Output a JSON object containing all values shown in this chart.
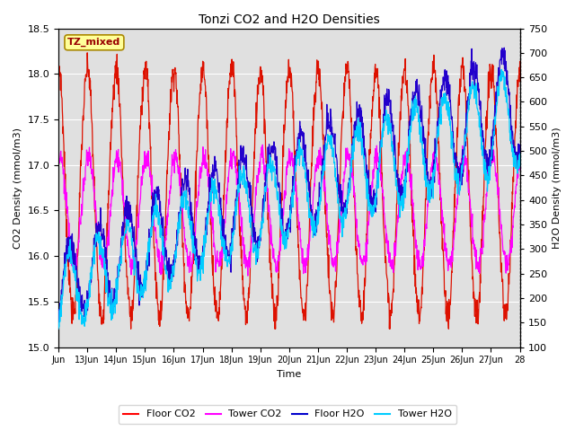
{
  "title": "Tonzi CO2 and H2O Densities",
  "xlabel": "Time",
  "ylabel_left": "CO2 Density (mmol/m3)",
  "ylabel_right": "H2O Density (mmol/m3)",
  "annotation": "TZ_mixed",
  "x_tick_labels": [
    "Jun",
    "13Jun",
    "14Jun",
    "15Jun",
    "16Jun",
    "17Jun",
    "18Jun",
    "19Jun",
    "20Jun",
    "21Jun",
    "22Jun",
    "23Jun",
    "24Jun",
    "25Jun",
    "26Jun",
    "27Jun",
    "28"
  ],
  "ylim_left": [
    15.0,
    18.5
  ],
  "ylim_right": [
    100,
    750
  ],
  "yticks_left": [
    15.0,
    15.5,
    16.0,
    16.5,
    17.0,
    17.5,
    18.0,
    18.5
  ],
  "yticks_right": [
    100,
    150,
    200,
    250,
    300,
    350,
    400,
    450,
    500,
    550,
    600,
    650,
    700,
    750
  ],
  "legend_entries": [
    "Floor CO2",
    "Tower CO2",
    "Floor H2O",
    "Tower H2O"
  ],
  "legend_colors": [
    "#ff0000",
    "#ff00ff",
    "#0000cc",
    "#00ccff"
  ],
  "colors": {
    "floor_co2": "#dd1100",
    "tower_co2": "#ff00ff",
    "floor_h2o": "#2200cc",
    "tower_h2o": "#00ccff"
  },
  "background_color": "#e0e0e0",
  "n_days": 16,
  "annotation_bg": "#ffff99",
  "annotation_border": "#aa8800",
  "figsize": [
    6.4,
    4.8
  ],
  "dpi": 100
}
